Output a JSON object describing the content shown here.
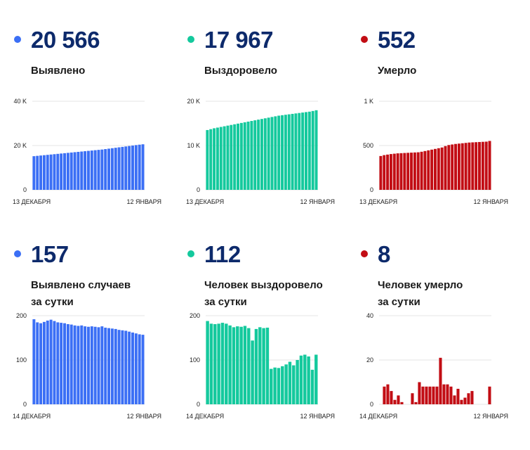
{
  "colors": {
    "blue": "#3b6ff5",
    "green": "#14c99d",
    "red": "#c20d14",
    "title": "#0d2a6b"
  },
  "chart_data": [
    {
      "type": "bar",
      "total": "20 566",
      "label": "Выявлено",
      "label2": "",
      "color": "#3b6ff5",
      "ylim": [
        0,
        40000
      ],
      "yticks": [
        "40 K",
        "20 K",
        "0"
      ],
      "xlabels": [
        "13 ДЕКАБРЯ",
        "12 ЯНВАРЯ"
      ],
      "values": [
        15200,
        15350,
        15500,
        15650,
        15800,
        15950,
        16100,
        16250,
        16400,
        16550,
        16700,
        16850,
        17000,
        17150,
        17300,
        17450,
        17600,
        17750,
        17900,
        18050,
        18200,
        18400,
        18600,
        18800,
        19000,
        19200,
        19400,
        19600,
        19800,
        20000,
        20200,
        20400,
        20566
      ]
    },
    {
      "type": "bar",
      "total": "17 967",
      "label": "Выздоровело",
      "label2": "",
      "color": "#14c99d",
      "ylim": [
        0,
        20000
      ],
      "yticks": [
        "20 K",
        "10 K",
        "0"
      ],
      "xlabels": [
        "13 ДЕКАБРЯ",
        "12 ЯНВАРЯ"
      ],
      "values": [
        13500,
        13700,
        13900,
        14050,
        14200,
        14350,
        14500,
        14650,
        14800,
        14950,
        15100,
        15250,
        15400,
        15550,
        15700,
        15850,
        16000,
        16150,
        16300,
        16450,
        16600,
        16750,
        16850,
        16950,
        17050,
        17150,
        17250,
        17350,
        17450,
        17550,
        17650,
        17800,
        17967
      ]
    },
    {
      "type": "bar",
      "total": "552",
      "label": "Умерло",
      "label2": "",
      "color": "#c20d14",
      "ylim": [
        0,
        1000
      ],
      "yticks": [
        "1 K",
        "500",
        "0"
      ],
      "xlabels": [
        "13 ДЕКАБРЯ",
        "12 ЯНВАРЯ"
      ],
      "values": [
        382,
        392,
        398,
        404,
        408,
        412,
        414,
        416,
        418,
        420,
        422,
        424,
        430,
        438,
        446,
        454,
        462,
        470,
        478,
        494,
        506,
        512,
        518,
        522,
        526,
        530,
        534,
        536,
        538,
        540,
        542,
        544,
        552
      ]
    },
    {
      "type": "bar",
      "total": "157",
      "label": "Выявлено случаев",
      "label2": "за сутки",
      "color": "#3b6ff5",
      "ylim": [
        0,
        200
      ],
      "yticks": [
        "200",
        "100",
        "0"
      ],
      "xlabels": [
        "14 ДЕКАБРЯ",
        "12 ЯНВАРЯ"
      ],
      "values": [
        192,
        185,
        183,
        186,
        189,
        191,
        188,
        185,
        184,
        183,
        181,
        180,
        178,
        177,
        178,
        176,
        175,
        176,
        175,
        174,
        176,
        173,
        172,
        171,
        170,
        168,
        167,
        166,
        164,
        162,
        160,
        158,
        157
      ]
    },
    {
      "type": "bar",
      "total": "112",
      "label": "Человек выздоровело",
      "label2": "за сутки",
      "color": "#14c99d",
      "ylim": [
        0,
        200
      ],
      "yticks": [
        "200",
        "100",
        "0"
      ],
      "xlabels": [
        "14 ДЕКАБРЯ",
        "12 ЯНВАРЯ"
      ],
      "values": [
        188,
        182,
        181,
        182,
        184,
        182,
        178,
        174,
        176,
        175,
        177,
        172,
        144,
        170,
        174,
        172,
        173,
        80,
        83,
        82,
        86,
        90,
        96,
        88,
        100,
        110,
        112,
        108,
        78,
        112
      ]
    },
    {
      "type": "bar",
      "total": "8",
      "label": "Человек умерло",
      "label2": "за сутки",
      "color": "#c20d14",
      "ylim": [
        0,
        40
      ],
      "yticks": [
        "40",
        "20",
        "0"
      ],
      "xlabels": [
        "14 ДЕКАБРЯ",
        "12 ЯНВАРЯ"
      ],
      "values": [
        0,
        8,
        9,
        6,
        2,
        4,
        1,
        0,
        0,
        5,
        1,
        10,
        8,
        8,
        8,
        8,
        8,
        21,
        9,
        9,
        8,
        4,
        7,
        2,
        3,
        5,
        6,
        0,
        0,
        0,
        0,
        8
      ]
    }
  ]
}
